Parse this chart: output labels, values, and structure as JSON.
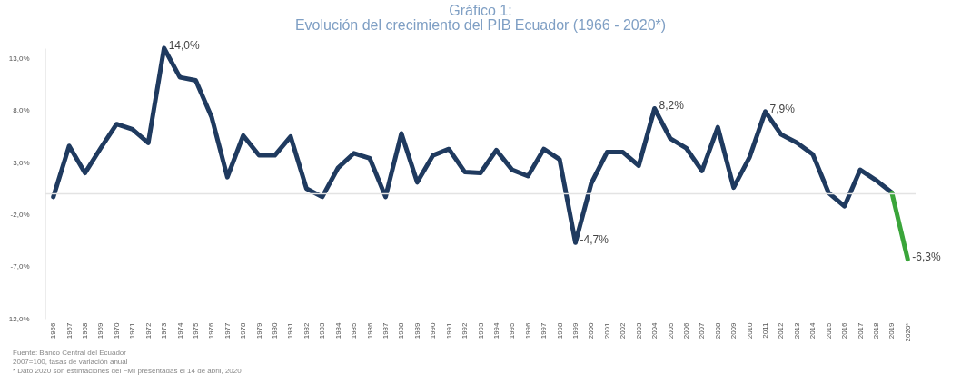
{
  "chart_data": {
    "type": "line",
    "title": "Gráfico 1:",
    "subtitle": "Evolución del crecimiento del PIB Ecuador (1966 - 2020*)",
    "categories": [
      "1966",
      "1967",
      "1968",
      "1969",
      "1970",
      "1971",
      "1972",
      "1973",
      "1974",
      "1975",
      "1976",
      "1977",
      "1978",
      "1979",
      "1980",
      "1981",
      "1982",
      "1983",
      "1984",
      "1985",
      "1986",
      "1987",
      "1988",
      "1989",
      "1990",
      "1991",
      "1992",
      "1993",
      "1994",
      "1995",
      "1996",
      "1997",
      "1998",
      "1999",
      "2000",
      "2001",
      "2002",
      "2003",
      "2004",
      "2005",
      "2006",
      "2007",
      "2008",
      "2009",
      "2010",
      "2011",
      "2012",
      "2013",
      "2014",
      "2015",
      "2016",
      "2017",
      "2018",
      "2019",
      "2020*"
    ],
    "series": [
      {
        "color": "#1f3a5f",
        "values": [
          -0.3,
          4.6,
          2.0,
          4.4,
          6.7,
          6.2,
          4.9,
          14.0,
          11.2,
          10.9,
          7.4,
          1.6,
          5.6,
          3.7,
          3.7,
          5.5,
          0.5,
          -0.3,
          2.5,
          3.9,
          3.4,
          -0.3,
          5.8,
          1.1,
          3.7,
          4.3,
          2.1,
          2.0,
          4.2,
          2.3,
          1.7,
          4.3,
          3.3,
          -4.7,
          1.0,
          4.0,
          4.0,
          2.7,
          8.2,
          5.3,
          4.4,
          2.2,
          6.4,
          0.6,
          3.5,
          7.9,
          5.7,
          4.9,
          3.8,
          0.1,
          -1.2,
          2.3,
          1.3,
          0.1,
          null
        ],
        "value_labels": [
          null,
          null,
          null,
          null,
          null,
          null,
          null,
          "14,0%",
          null,
          null,
          null,
          null,
          null,
          null,
          null,
          null,
          null,
          null,
          null,
          null,
          null,
          null,
          null,
          null,
          null,
          null,
          null,
          null,
          null,
          null,
          null,
          null,
          null,
          "-4,7%",
          null,
          null,
          null,
          null,
          "8,2%",
          null,
          null,
          null,
          null,
          null,
          null,
          "7,9%",
          null,
          null,
          null,
          null,
          null,
          null,
          null,
          null,
          null
        ]
      },
      {
        "color": "#3aa53a",
        "values": [
          null,
          null,
          null,
          null,
          null,
          null,
          null,
          null,
          null,
          null,
          null,
          null,
          null,
          null,
          null,
          null,
          null,
          null,
          null,
          null,
          null,
          null,
          null,
          null,
          null,
          null,
          null,
          null,
          null,
          null,
          null,
          null,
          null,
          null,
          null,
          null,
          null,
          null,
          null,
          null,
          null,
          null,
          null,
          null,
          null,
          null,
          null,
          null,
          null,
          null,
          null,
          null,
          null,
          0.1,
          -6.3
        ],
        "value_labels": [
          null,
          null,
          null,
          null,
          null,
          null,
          null,
          null,
          null,
          null,
          null,
          null,
          null,
          null,
          null,
          null,
          null,
          null,
          null,
          null,
          null,
          null,
          null,
          null,
          null,
          null,
          null,
          null,
          null,
          null,
          null,
          null,
          null,
          null,
          null,
          null,
          null,
          null,
          null,
          null,
          null,
          null,
          null,
          null,
          null,
          null,
          null,
          null,
          null,
          null,
          null,
          null,
          null,
          null,
          "-6,3%"
        ]
      }
    ],
    "ylim": [
      -12,
      14
    ],
    "yticks": [
      {
        "value": -12,
        "label": "-12,0%"
      },
      {
        "value": -7,
        "label": "-7,0%"
      },
      {
        "value": -2,
        "label": "-2,0%"
      },
      {
        "value": 3,
        "label": "3,0%"
      },
      {
        "value": 8,
        "label": "8,0%"
      },
      {
        "value": 13,
        "label": "13,0%"
      }
    ],
    "grid": false,
    "ref_lines": [
      {
        "axis": "y",
        "value": 0,
        "color": "#e3e3e3"
      }
    ],
    "annotations": [
      "Fuente: Banco Central del Ecuador",
      "2007=100, tasas de variación anual",
      "* Dato 2020 son estimaciones del FMI presentadas el 14 de abril, 2020"
    ]
  }
}
